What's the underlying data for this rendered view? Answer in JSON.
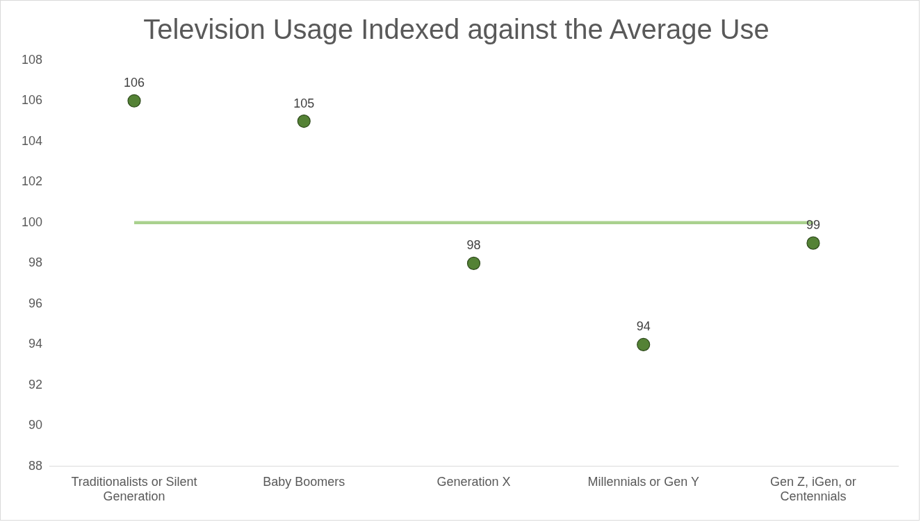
{
  "chart_data": {
    "type": "scatter",
    "title": "Television Usage Indexed against the Average Use",
    "categories": [
      "Traditionalists or Silent Generation",
      "Baby Boomers",
      "Generation X",
      "Millennials or Gen Y",
      "Gen Z, iGen, or Centennials"
    ],
    "series": [
      {
        "color": "#548235",
        "marker": "circle",
        "values": [
          106,
          105,
          98,
          94,
          99
        ],
        "value_labels": [
          "106",
          "105",
          "98",
          "94",
          "99"
        ]
      },
      {
        "type": "line",
        "color": "#a9d18e",
        "values": [
          100,
          100,
          100,
          100,
          100
        ]
      }
    ],
    "ylim": [
      88,
      108
    ],
    "yticks": [
      88,
      90,
      92,
      94,
      96,
      98,
      100,
      102,
      104,
      106,
      108
    ],
    "grid": false,
    "legend": false
  }
}
